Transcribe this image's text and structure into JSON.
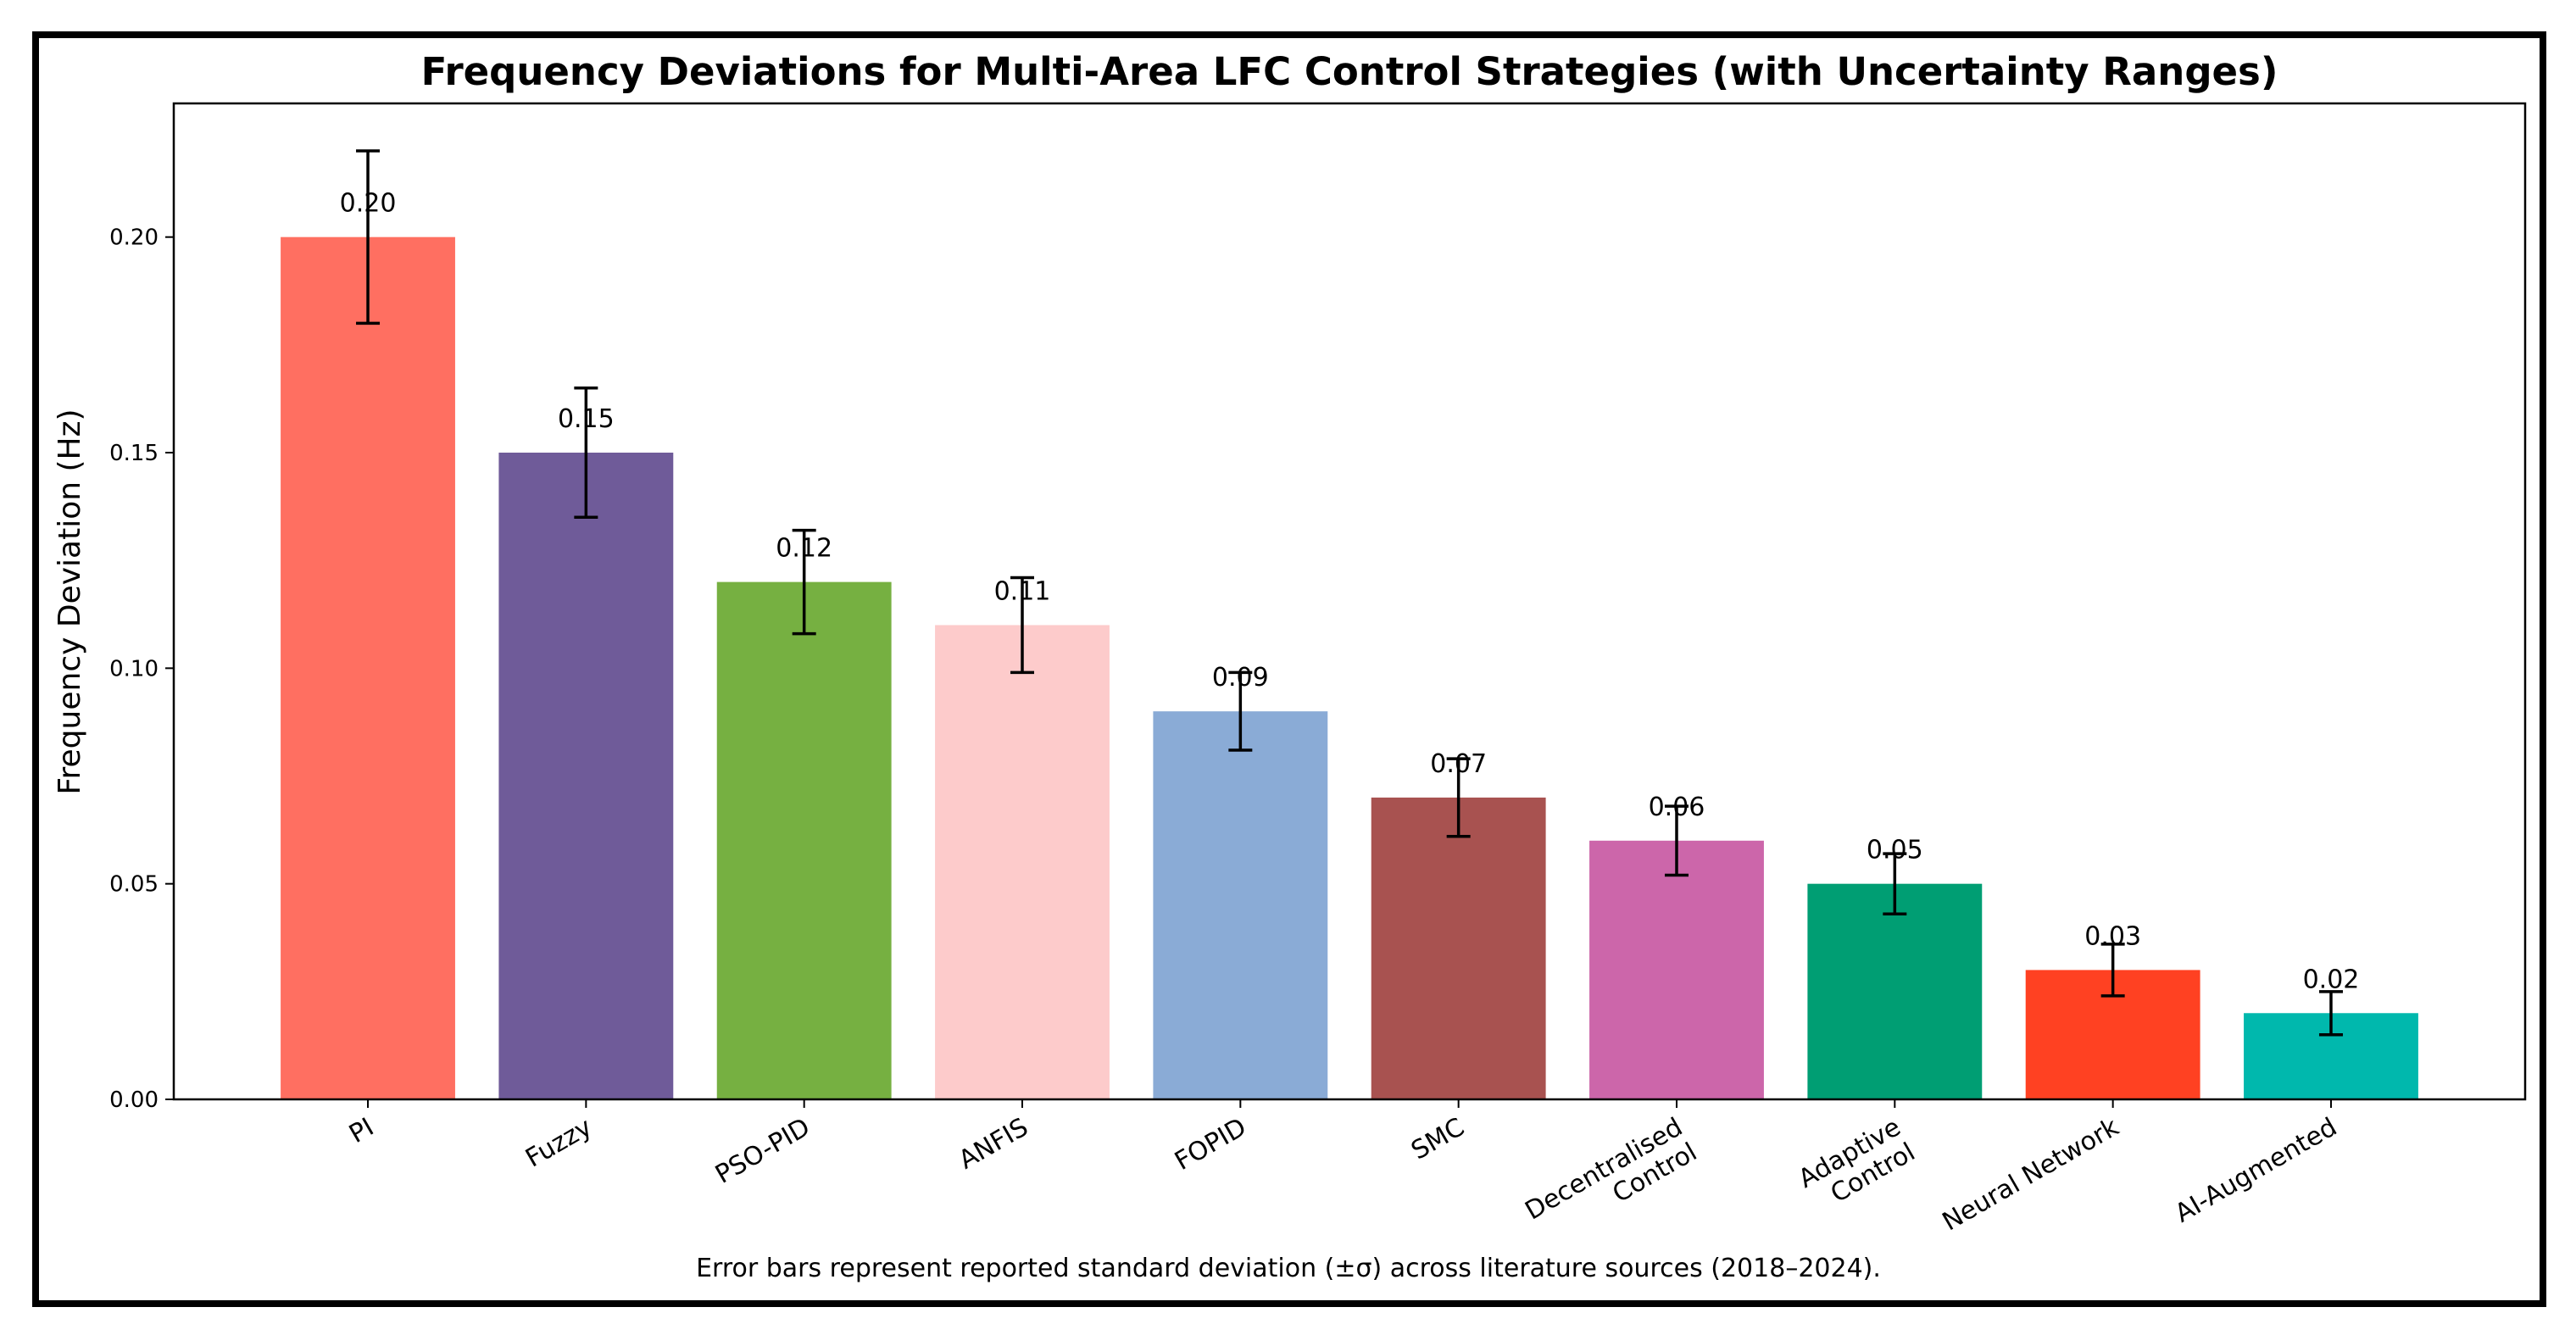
{
  "chart_data": {
    "type": "bar",
    "title": "Frequency Deviations for Multi-Area LFC Control Strategies (with Uncertainty Ranges)",
    "xlabel": "",
    "ylabel": "Frequency Deviation (Hz)",
    "ylim": [
      0,
      0.231
    ],
    "yticks": [
      0.0,
      0.05,
      0.1,
      0.15,
      0.2
    ],
    "ytick_labels": [
      "0.00",
      "0.05",
      "0.10",
      "0.15",
      "0.20"
    ],
    "grid": false,
    "categories": [
      "PI",
      "Fuzzy",
      "PSO-PID",
      "ANFIS",
      "FOPID",
      "SMC",
      "Decentralised\nControl",
      "Adaptive\nControl",
      "Neural Network",
      "AI-Augmented"
    ],
    "values": [
      0.2,
      0.15,
      0.12,
      0.11,
      0.09,
      0.07,
      0.06,
      0.05,
      0.03,
      0.02
    ],
    "errors": [
      0.02,
      0.015,
      0.012,
      0.011,
      0.009,
      0.009,
      0.008,
      0.007,
      0.006,
      0.005
    ],
    "value_labels": [
      "0.20",
      "0.15",
      "0.12",
      "0.11",
      "0.09",
      "0.07",
      "0.06",
      "0.05",
      "0.03",
      "0.02"
    ],
    "colors": [
      "#FF6F61",
      "#6F5B99",
      "#76B041",
      "#FDCBCB",
      "#8AABD6",
      "#A85250",
      "#CC66AA",
      "#009E73",
      "#FF4122",
      "#00B8AD"
    ],
    "caption": "Error bars represent reported standard deviation (±σ) across literature sources (2018–2024)."
  }
}
